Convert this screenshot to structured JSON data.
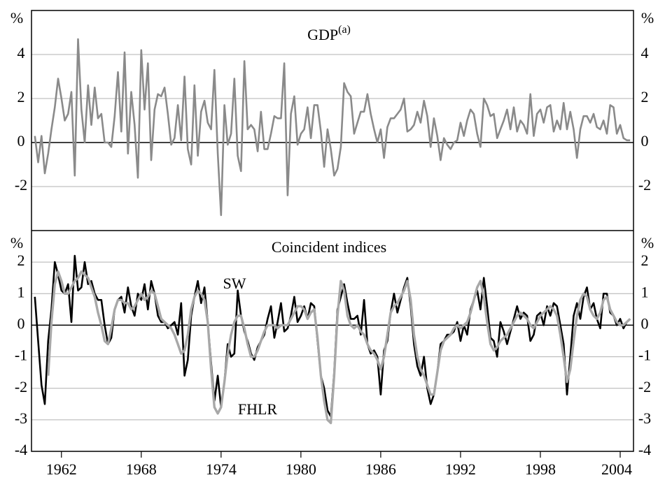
{
  "chart_data": [
    {
      "type": "line",
      "title": "GDP",
      "title_superscript": "(a)",
      "ylabel": "%",
      "x": [
        1960,
        1960.25,
        1960.5,
        1960.75,
        1961,
        1961.25,
        1961.5,
        1961.75,
        1962,
        1962.25,
        1962.5,
        1962.75,
        1963,
        1963.25,
        1963.5,
        1963.75,
        1964,
        1964.25,
        1964.5,
        1964.75,
        1965,
        1965.25,
        1965.5,
        1965.75,
        1966,
        1966.25,
        1966.5,
        1966.75,
        1967,
        1967.25,
        1967.5,
        1967.75,
        1968,
        1968.25,
        1968.5,
        1968.75,
        1969,
        1969.25,
        1969.5,
        1969.75,
        1970,
        1970.25,
        1970.5,
        1970.75,
        1971,
        1971.25,
        1971.5,
        1971.75,
        1972,
        1972.25,
        1972.5,
        1972.75,
        1973,
        1973.25,
        1973.5,
        1973.75,
        1974,
        1974.25,
        1974.5,
        1974.75,
        1975,
        1975.25,
        1975.5,
        1975.75,
        1976,
        1976.25,
        1976.5,
        1976.75,
        1977,
        1977.25,
        1977.5,
        1977.75,
        1978,
        1978.25,
        1978.5,
        1978.75,
        1979,
        1979.25,
        1979.5,
        1979.75,
        1980,
        1980.25,
        1980.5,
        1980.75,
        1981,
        1981.25,
        1981.5,
        1981.75,
        1982,
        1982.25,
        1982.5,
        1982.75,
        1983,
        1983.25,
        1983.5,
        1983.75,
        1984,
        1984.25,
        1984.5,
        1984.75,
        1985,
        1985.25,
        1985.5,
        1985.75,
        1986,
        1986.25,
        1986.5,
        1986.75,
        1987,
        1987.25,
        1987.5,
        1987.75,
        1988,
        1988.25,
        1988.5,
        1988.75,
        1989,
        1989.25,
        1989.5,
        1989.75,
        1990,
        1990.25,
        1990.5,
        1990.75,
        1991,
        1991.25,
        1991.5,
        1991.75,
        1992,
        1992.25,
        1992.5,
        1992.75,
        1993,
        1993.25,
        1993.5,
        1993.75,
        1994,
        1994.25,
        1994.5,
        1994.75,
        1995,
        1995.25,
        1995.5,
        1995.75,
        1996,
        1996.25,
        1996.5,
        1996.75,
        1997,
        1997.25,
        1997.5,
        1997.75,
        1998,
        1998.25,
        1998.5,
        1998.75,
        1999,
        1999.25,
        1999.5,
        1999.75,
        2000,
        2000.25,
        2000.5,
        2000.75,
        2001,
        2001.25,
        2001.5,
        2001.75,
        2002,
        2002.25,
        2002.5,
        2002.75,
        2003,
        2003.25,
        2003.5,
        2003.75,
        2004,
        2004.25,
        2004.5,
        2004.75
      ],
      "series": [
        {
          "color": "#8a8a8a",
          "values": [
            0.3,
            -0.9,
            0.3,
            -1.4,
            -0.5,
            0.6,
            1.6,
            2.9,
            2.0,
            1.0,
            1.3,
            2.3,
            -1.5,
            4.7,
            1.5,
            0.0,
            2.6,
            0.8,
            2.5,
            1.1,
            1.3,
            0.0,
            0.0,
            -0.2,
            1.2,
            3.2,
            0.5,
            4.1,
            -0.5,
            2.3,
            0.8,
            -1.6,
            4.2,
            1.5,
            3.6,
            -0.8,
            1.5,
            2.2,
            2.1,
            2.5,
            1.3,
            -0.1,
            0.2,
            1.7,
            0.1,
            3.0,
            -0.3,
            -1.0,
            2.6,
            -0.6,
            1.4,
            1.9,
            0.9,
            0.6,
            3.3,
            -0.5,
            -3.3,
            1.7,
            -0.1,
            0.4,
            2.9,
            -0.6,
            -1.3,
            3.7,
            0.6,
            0.8,
            0.6,
            -0.4,
            1.4,
            -0.3,
            -0.3,
            0.4,
            1.2,
            1.1,
            1.1,
            3.6,
            -2.4,
            1.3,
            2.1,
            -0.1,
            0.4,
            0.6,
            1.6,
            0.2,
            1.7,
            1.7,
            0.5,
            -1.1,
            0.6,
            -0.3,
            -1.5,
            -1.2,
            -0.2,
            2.7,
            2.3,
            2.1,
            0.4,
            0.9,
            1.4,
            1.4,
            2.2,
            1.3,
            0.6,
            0.0,
            0.6,
            -0.7,
            0.7,
            1.1,
            1.1,
            1.3,
            1.5,
            2.0,
            0.5,
            0.6,
            0.8,
            1.4,
            0.9,
            1.9,
            1.2,
            -0.2,
            1.1,
            0.3,
            -0.8,
            0.2,
            -0.1,
            -0.3,
            0.0,
            0.1,
            0.9,
            0.3,
            1.0,
            1.5,
            1.3,
            0.4,
            -0.2,
            2.0,
            1.7,
            1.2,
            1.3,
            0.2,
            0.6,
            1.0,
            1.5,
            0.6,
            1.6,
            0.5,
            1.0,
            0.8,
            0.4,
            2.2,
            0.3,
            1.3,
            1.5,
            0.9,
            1.6,
            1.7,
            0.5,
            1.0,
            0.6,
            1.8,
            0.6,
            1.4,
            0.6,
            -0.7,
            0.6,
            1.2,
            1.2,
            0.9,
            1.3,
            0.7,
            0.6,
            1.0,
            0.4,
            1.7,
            1.6,
            0.4,
            0.8,
            0.2,
            0.1,
            0.1
          ]
        }
      ],
      "xlim": [
        1959.75,
        2005
      ],
      "ylim": [
        -4,
        6
      ],
      "yticks": [
        -2,
        0,
        2,
        4
      ],
      "grid": true
    },
    {
      "type": "line",
      "title": "Coincident indices",
      "ylabel": "%",
      "x": [
        1960,
        1960.25,
        1960.5,
        1960.75,
        1961,
        1961.25,
        1961.5,
        1961.75,
        1962,
        1962.25,
        1962.5,
        1962.75,
        1963,
        1963.25,
        1963.5,
        1963.75,
        1964,
        1964.25,
        1964.5,
        1964.75,
        1965,
        1965.25,
        1965.5,
        1965.75,
        1966,
        1966.25,
        1966.5,
        1966.75,
        1967,
        1967.25,
        1967.5,
        1967.75,
        1968,
        1968.25,
        1968.5,
        1968.75,
        1969,
        1969.25,
        1969.5,
        1969.75,
        1970,
        1970.25,
        1970.5,
        1970.75,
        1971,
        1971.25,
        1971.5,
        1971.75,
        1972,
        1972.25,
        1972.5,
        1972.75,
        1973,
        1973.25,
        1973.5,
        1973.75,
        1974,
        1974.25,
        1974.5,
        1974.75,
        1975,
        1975.25,
        1975.5,
        1975.75,
        1976,
        1976.25,
        1976.5,
        1976.75,
        1977,
        1977.25,
        1977.5,
        1977.75,
        1978,
        1978.25,
        1978.5,
        1978.75,
        1979,
        1979.25,
        1979.5,
        1979.75,
        1980,
        1980.25,
        1980.5,
        1980.75,
        1981,
        1981.25,
        1981.5,
        1981.75,
        1982,
        1982.25,
        1982.5,
        1982.75,
        1983,
        1983.25,
        1983.5,
        1983.75,
        1984,
        1984.25,
        1984.5,
        1984.75,
        1985,
        1985.25,
        1985.5,
        1985.75,
        1986,
        1986.25,
        1986.5,
        1986.75,
        1987,
        1987.25,
        1987.5,
        1987.75,
        1988,
        1988.25,
        1988.5,
        1988.75,
        1989,
        1989.25,
        1989.5,
        1989.75,
        1990,
        1990.25,
        1990.5,
        1990.75,
        1991,
        1991.25,
        1991.5,
        1991.75,
        1992,
        1992.25,
        1992.5,
        1992.75,
        1993,
        1993.25,
        1993.5,
        1993.75,
        1994,
        1994.25,
        1994.5,
        1994.75,
        1995,
        1995.25,
        1995.5,
        1995.75,
        1996,
        1996.25,
        1996.5,
        1996.75,
        1997,
        1997.25,
        1997.5,
        1997.75,
        1998,
        1998.25,
        1998.5,
        1998.75,
        1999,
        1999.25,
        1999.5,
        1999.75,
        2000,
        2000.25,
        2000.5,
        2000.75,
        2001,
        2001.25,
        2001.5,
        2001.75,
        2002,
        2002.25,
        2002.5,
        2002.75,
        2003,
        2003.25,
        2003.5,
        2003.75,
        2004,
        2004.25,
        2004.5,
        2004.75
      ],
      "series": [
        {
          "name": "SW",
          "color": "#000000",
          "values": [
            0.9,
            -0.5,
            -1.9,
            -2.5,
            -0.5,
            0.5,
            2.0,
            1.6,
            1.1,
            1.0,
            1.3,
            0.1,
            2.2,
            1.1,
            1.2,
            2.0,
            1.3,
            1.4,
            1.0,
            0.8,
            0.8,
            0.0,
            -0.6,
            -0.4,
            0.5,
            0.8,
            0.9,
            0.4,
            1.2,
            0.6,
            0.3,
            1.0,
            0.8,
            1.3,
            0.5,
            1.4,
            1.0,
            0.3,
            0.1,
            0.1,
            -0.1,
            0.0,
            0.1,
            -0.3,
            0.7,
            -1.6,
            -1.1,
            0.3,
            0.9,
            1.4,
            0.7,
            1.2,
            0.1,
            -1.2,
            -2.4,
            -1.6,
            -2.6,
            -1.8,
            -0.6,
            -1.0,
            -0.9,
            1.1,
            0.3,
            -0.2,
            -0.5,
            -0.9,
            -1.1,
            -0.7,
            -0.5,
            -0.3,
            0.2,
            0.6,
            -0.4,
            0.1,
            0.7,
            -0.2,
            -0.1,
            0.3,
            0.9,
            0.1,
            0.3,
            0.6,
            0.2,
            0.7,
            0.6,
            -0.5,
            -1.6,
            -2.0,
            -2.7,
            -2.9,
            -1.5,
            0.5,
            0.9,
            1.3,
            0.7,
            0.2,
            0.2,
            0.3,
            -0.3,
            0.8,
            -0.6,
            -0.9,
            -0.8,
            -1.0,
            -2.2,
            -0.8,
            -0.5,
            0.4,
            1.0,
            0.4,
            0.8,
            1.2,
            1.5,
            0.6,
            -0.6,
            -1.3,
            -1.6,
            -1.0,
            -2.0,
            -2.5,
            -2.2,
            -1.5,
            -0.6,
            -0.5,
            -0.3,
            -0.3,
            -0.2,
            0.1,
            -0.5,
            0.0,
            -0.3,
            0.5,
            0.8,
            1.1,
            0.5,
            1.5,
            0.6,
            -0.4,
            -0.5,
            -1.0,
            0.1,
            -0.2,
            -0.6,
            -0.2,
            0.2,
            0.6,
            0.2,
            0.4,
            0.3,
            -0.5,
            -0.3,
            0.3,
            0.4,
            0.0,
            0.6,
            0.3,
            0.7,
            0.6,
            0.0,
            -0.6,
            -2.2,
            -1.0,
            0.3,
            0.7,
            0.2,
            0.9,
            1.2,
            0.5,
            0.7,
            0.2,
            -0.1,
            1.0,
            1.0,
            0.4,
            0.3,
            0.0,
            0.2,
            -0.1,
            0.1,
            0.2
          ]
        },
        {
          "name": "FHLR",
          "color": "#a8a8a8",
          "values": [
            null,
            null,
            null,
            null,
            -1.6,
            0.1,
            1.3,
            1.7,
            1.4,
            1.0,
            1.0,
            1.2,
            1.4,
            1.5,
            1.7,
            1.6,
            1.5,
            1.2,
            0.9,
            0.4,
            0.0,
            -0.5,
            -0.6,
            -0.1,
            0.5,
            0.8,
            0.8,
            0.7,
            0.7,
            0.5,
            0.6,
            0.8,
            1.0,
            0.8,
            0.9,
            1.1,
            1.0,
            0.6,
            0.2,
            0.1,
            0.0,
            -0.1,
            -0.3,
            -0.6,
            -0.9,
            -0.8,
            -0.3,
            0.5,
            0.9,
            1.1,
            1.0,
            0.8,
            0.1,
            -1.4,
            -2.6,
            -2.8,
            -2.6,
            -1.8,
            -0.9,
            -0.3,
            0.1,
            0.3,
            0.3,
            -0.1,
            -0.6,
            -1.0,
            -1.0,
            -0.8,
            -0.5,
            -0.2,
            0.0,
            0.0,
            0.0,
            -0.1,
            0.0,
            0.0,
            0.0,
            0.2,
            0.4,
            0.6,
            0.6,
            0.5,
            0.2,
            0.4,
            0.5,
            -0.4,
            -1.6,
            -2.4,
            -3.0,
            -3.1,
            -1.6,
            0.3,
            1.4,
            1.1,
            0.3,
            0.0,
            -0.1,
            0.0,
            -0.2,
            -0.3,
            -0.6,
            -0.8,
            -0.9,
            -1.1,
            -1.4,
            -1.0,
            -0.3,
            0.4,
            0.6,
            0.7,
            0.9,
            1.1,
            1.4,
            0.8,
            -0.3,
            -1.0,
            -1.4,
            -1.6,
            -1.9,
            -2.2,
            -2.2,
            -1.5,
            -0.8,
            -0.5,
            -0.4,
            -0.3,
            -0.1,
            0.0,
            -0.1,
            0.0,
            0.1,
            0.4,
            0.8,
            1.2,
            1.4,
            0.9,
            0.1,
            -0.6,
            -0.8,
            -0.7,
            -0.5,
            -0.4,
            -0.3,
            -0.1,
            0.1,
            0.3,
            0.4,
            0.3,
            0.2,
            0.0,
            -0.1,
            0.1,
            0.3,
            0.4,
            0.5,
            0.6,
            0.5,
            0.3,
            -0.3,
            -1.0,
            -1.8,
            -1.4,
            -0.5,
            0.3,
            0.8,
            1.0,
            0.9,
            0.5,
            0.3,
            0.2,
            0.4,
            0.8,
            0.9,
            0.5,
            0.3,
            0.1,
            0.0,
            0.0,
            0.1,
            0.2
          ]
        }
      ],
      "xlim": [
        1959.75,
        2005
      ],
      "ylim": [
        -4,
        3
      ],
      "yticks": [
        -4,
        -3,
        -2,
        -1,
        0,
        1,
        2
      ],
      "grid": true,
      "xticks": [
        1962,
        1968,
        1974,
        1980,
        1986,
        1992,
        1998,
        2004
      ]
    }
  ]
}
